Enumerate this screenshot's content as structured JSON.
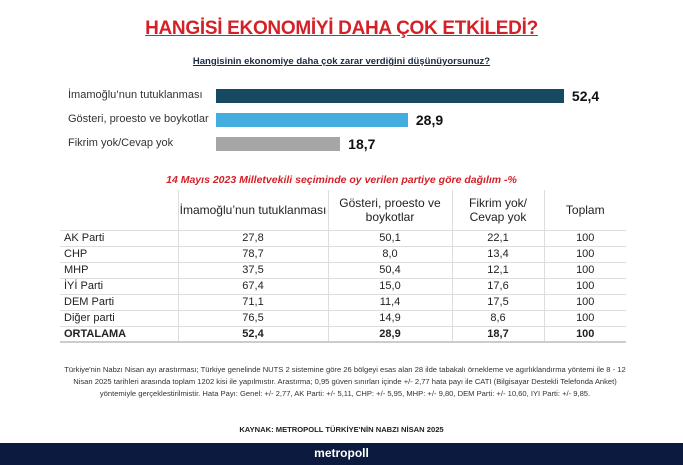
{
  "title": "HANGİSİ EKONOMİYİ DAHA ÇOK ETKİLEDİ?",
  "subtitle": "Hangisinin ekonomiye daha çok zarar verdiğini düşünüyorsunuz?",
  "chart_data": {
    "type": "bar",
    "orientation": "horizontal",
    "categories": [
      "İmamoğlu’nun tutuklanması",
      "Gösteri, proesto ve boykotlar",
      "Fikrim yok/Cevap yok"
    ],
    "values": [
      52.4,
      28.9,
      18.7
    ],
    "value_labels": [
      "52,4",
      "28,9",
      "18,7"
    ],
    "colors": [
      "#164a62",
      "#45ade0",
      "#a6a6a6"
    ]
  },
  "table": {
    "title": "14 Mayıs 2023 Milletvekili seçiminde oy verilen partiye göre dağılım -%",
    "headers": [
      "",
      "İmamoğlu’nun tutuklanması",
      "Gösteri, proesto ve boykotlar",
      "Fikrim yok/ Cevap yok",
      "Toplam"
    ],
    "rows": [
      [
        "AK Parti",
        "27,8",
        "50,1",
        "22,1",
        "100"
      ],
      [
        "CHP",
        "78,7",
        "8,0",
        "13,4",
        "100"
      ],
      [
        "MHP",
        "37,5",
        "50,4",
        "12,1",
        "100"
      ],
      [
        "İYİ Parti",
        "67,4",
        "15,0",
        "17,6",
        "100"
      ],
      [
        "DEM Parti",
        "71,1",
        "11,4",
        "17,5",
        "100"
      ],
      [
        "Diğer parti",
        "76,5",
        "14,9",
        "8,6",
        "100"
      ],
      [
        "ORTALAMA",
        "52,4",
        "28,9",
        "18,7",
        "100"
      ]
    ]
  },
  "note": "Türkiye'nin Nabzı Nisan ayı arastırması; Türkiye genelinde NUTS 2 sistemine göre 26 bölgeyi esas alan 28 ilde tabakalı örnekleme ve agırlıklandırma yöntemi ile 8 - 12 Nisan 2025 tarihleri arasında toplam 1202 kisi ile yapılmıstır. Arastırma; 0,95 güven sınırları içinde +/- 2,77 hata payı ile CATI (Bilgisayar Destekli Telefonda Anket) yöntemiyle gerçeklestirilmistir. Hata Payı: Genel: +/- 2,77, AK Parti: +/- 5,11, CHP: +/- 5,95, MHP: +/- 9,80, DEM Parti: +/- 10,60, IYI Parti: +/- 9,85.",
  "source": "KAYNAK: METROPOLL TÜRKİYE'NİN NABZI NİSAN 2025",
  "footer": "metropoll"
}
